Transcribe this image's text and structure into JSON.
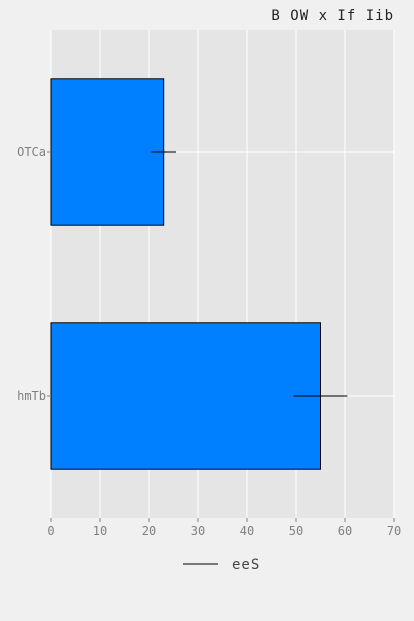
{
  "chart_data": {
    "type": "bar",
    "orientation": "horizontal",
    "title": "B OW x If Iib",
    "categories": [
      "OTCa",
      "hmTb"
    ],
    "series": [
      {
        "name": "eeS",
        "values": [
          23,
          55
        ],
        "errors": [
          2.5,
          5.5
        ],
        "color": "#0080ff"
      }
    ],
    "xlim": [
      0,
      70
    ],
    "xticks": [
      0,
      10,
      20,
      30,
      40,
      50,
      60,
      70
    ],
    "xlabel": "",
    "ylabel": "",
    "grid": true,
    "legend_position": "bottom-center",
    "plot_background": "#e5e5e5",
    "grid_color": "#ffffff"
  }
}
